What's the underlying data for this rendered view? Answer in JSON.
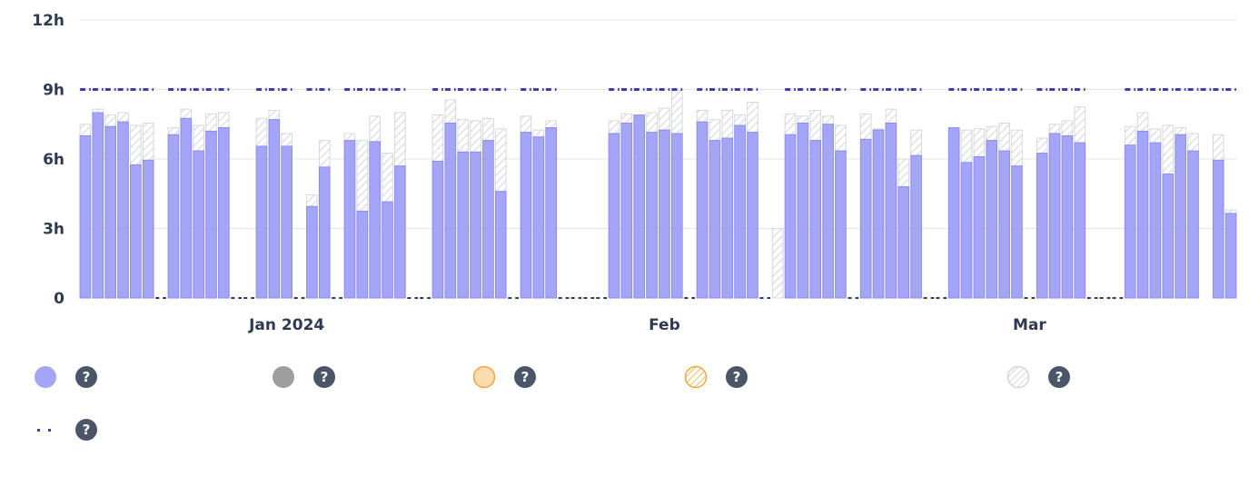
{
  "chart_data": {
    "type": "bar",
    "y_ticks": [
      "0",
      "3h",
      "6h",
      "9h",
      "12h"
    ],
    "ylim": [
      0,
      12
    ],
    "target_hours": 9,
    "x_labels": [
      {
        "label": "Jan 2024",
        "day": 16
      },
      {
        "label": "Feb",
        "day": 46
      },
      {
        "label": "Mar",
        "day": 75
      }
    ],
    "days": [
      {
        "day": 0,
        "base": 7.0,
        "total": 7.5,
        "target": true
      },
      {
        "day": 1,
        "base": 8.0,
        "total": 8.15,
        "target": true
      },
      {
        "day": 2,
        "base": 7.4,
        "total": 7.9,
        "target": true
      },
      {
        "day": 3,
        "base": 7.6,
        "total": 8.0,
        "target": true
      },
      {
        "day": 4,
        "base": 5.75,
        "total": 7.45,
        "target": true
      },
      {
        "day": 5,
        "base": 5.95,
        "total": 7.55,
        "target": true
      },
      {
        "day": 6,
        "base": 0,
        "total": 0,
        "target": false
      },
      {
        "day": 7,
        "base": 7.05,
        "total": 7.35,
        "target": true
      },
      {
        "day": 8,
        "base": 7.75,
        "total": 8.15,
        "target": true
      },
      {
        "day": 9,
        "base": 6.35,
        "total": 7.45,
        "target": true
      },
      {
        "day": 10,
        "base": 7.2,
        "total": 7.95,
        "target": true
      },
      {
        "day": 11,
        "base": 7.35,
        "total": 8.0,
        "target": true
      },
      {
        "day": 12,
        "base": 0,
        "total": 0,
        "target": false
      },
      {
        "day": 13,
        "base": 0,
        "total": 0,
        "target": false
      },
      {
        "day": 14,
        "base": 6.55,
        "total": 7.75,
        "target": true
      },
      {
        "day": 15,
        "base": 7.7,
        "total": 8.1,
        "target": true
      },
      {
        "day": 16,
        "base": 6.55,
        "total": 7.1,
        "target": true
      },
      {
        "day": 17,
        "base": 0,
        "total": 0,
        "target": false
      },
      {
        "day": 18,
        "base": 3.95,
        "total": 4.45,
        "target": true
      },
      {
        "day": 19,
        "base": 5.65,
        "total": 6.8,
        "target": true
      },
      {
        "day": 20,
        "base": 0,
        "total": 0,
        "target": false
      },
      {
        "day": 21,
        "base": 6.8,
        "total": 7.1,
        "target": true
      },
      {
        "day": 22,
        "base": 3.75,
        "total": 6.8,
        "target": true
      },
      {
        "day": 23,
        "base": 6.75,
        "total": 7.85,
        "target": true
      },
      {
        "day": 24,
        "base": 4.15,
        "total": 6.25,
        "target": true
      },
      {
        "day": 25,
        "base": 5.7,
        "total": 8.0,
        "target": true
      },
      {
        "day": 26,
        "base": 0,
        "total": 0,
        "target": false
      },
      {
        "day": 27,
        "base": 0,
        "total": 0,
        "target": false
      },
      {
        "day": 28,
        "base": 5.9,
        "total": 7.9,
        "target": true
      },
      {
        "day": 29,
        "base": 7.55,
        "total": 8.55,
        "target": true
      },
      {
        "day": 30,
        "base": 6.3,
        "total": 7.7,
        "target": true
      },
      {
        "day": 31,
        "base": 6.3,
        "total": 7.65,
        "target": true
      },
      {
        "day": 32,
        "base": 6.8,
        "total": 7.75,
        "target": true
      },
      {
        "day": 33,
        "base": 4.6,
        "total": 7.3,
        "target": true
      },
      {
        "day": 34,
        "base": 0,
        "total": 0,
        "target": false
      },
      {
        "day": 35,
        "base": 7.15,
        "total": 7.85,
        "target": true
      },
      {
        "day": 36,
        "base": 6.95,
        "total": 7.25,
        "target": true
      },
      {
        "day": 37,
        "base": 7.35,
        "total": 7.65,
        "target": true
      },
      {
        "day": 38,
        "base": 0,
        "total": 0,
        "target": false
      },
      {
        "day": 39,
        "base": 0,
        "total": 0,
        "target": false
      },
      {
        "day": 40,
        "base": 0,
        "total": 0,
        "target": false
      },
      {
        "day": 41,
        "base": 0,
        "total": 0,
        "target": false
      },
      {
        "day": 42,
        "base": 7.1,
        "total": 7.65,
        "target": true
      },
      {
        "day": 43,
        "base": 7.55,
        "total": 7.95,
        "target": true
      },
      {
        "day": 44,
        "base": 7.9,
        "total": 7.9,
        "target": true
      },
      {
        "day": 45,
        "base": 7.15,
        "total": 8.0,
        "target": true
      },
      {
        "day": 46,
        "base": 7.25,
        "total": 8.2,
        "target": true
      },
      {
        "day": 47,
        "base": 7.1,
        "total": 8.95,
        "target": true
      },
      {
        "day": 48,
        "base": 0,
        "total": 0,
        "target": false
      },
      {
        "day": 49,
        "base": 7.6,
        "total": 8.1,
        "target": true
      },
      {
        "day": 50,
        "base": 6.8,
        "total": 7.7,
        "target": true
      },
      {
        "day": 51,
        "base": 6.9,
        "total": 8.1,
        "target": true
      },
      {
        "day": 52,
        "base": 7.45,
        "total": 7.9,
        "target": true
      },
      {
        "day": 53,
        "base": 7.15,
        "total": 8.45,
        "target": true
      },
      {
        "day": 54,
        "base": 0,
        "total": 0,
        "target": false
      },
      {
        "day": 55,
        "base": 0,
        "total": 3.0,
        "target": false
      },
      {
        "day": 56,
        "base": 7.05,
        "total": 7.95,
        "target": true
      },
      {
        "day": 57,
        "base": 7.55,
        "total": 7.85,
        "target": true
      },
      {
        "day": 58,
        "base": 6.8,
        "total": 8.1,
        "target": true
      },
      {
        "day": 59,
        "base": 7.5,
        "total": 7.85,
        "target": true
      },
      {
        "day": 60,
        "base": 6.35,
        "total": 7.45,
        "target": true
      },
      {
        "day": 61,
        "base": 0,
        "total": 0,
        "target": false
      },
      {
        "day": 62,
        "base": 6.85,
        "total": 7.95,
        "target": true
      },
      {
        "day": 63,
        "base": 7.25,
        "total": 7.3,
        "target": true
      },
      {
        "day": 64,
        "base": 7.55,
        "total": 8.15,
        "target": true
      },
      {
        "day": 65,
        "base": 4.8,
        "total": 6.0,
        "target": true
      },
      {
        "day": 66,
        "base": 6.15,
        "total": 7.25,
        "target": true
      },
      {
        "day": 67,
        "base": 0,
        "total": 0,
        "target": false
      },
      {
        "day": 68,
        "base": 0,
        "total": 0,
        "target": false
      },
      {
        "day": 69,
        "base": 7.35,
        "total": 7.35,
        "target": true
      },
      {
        "day": 70,
        "base": 5.85,
        "total": 7.25,
        "target": true
      },
      {
        "day": 71,
        "base": 6.1,
        "total": 7.3,
        "target": true
      },
      {
        "day": 72,
        "base": 6.8,
        "total": 7.4,
        "target": true
      },
      {
        "day": 73,
        "base": 6.35,
        "total": 7.55,
        "target": true
      },
      {
        "day": 74,
        "base": 5.7,
        "total": 7.25,
        "target": true
      },
      {
        "day": 75,
        "base": 0,
        "total": 0,
        "target": false
      },
      {
        "day": 76,
        "base": 6.25,
        "total": 6.9,
        "target": true
      },
      {
        "day": 77,
        "base": 7.1,
        "total": 7.5,
        "target": true
      },
      {
        "day": 78,
        "base": 7.0,
        "total": 7.65,
        "target": true
      },
      {
        "day": 79,
        "base": 6.7,
        "total": 8.25,
        "target": true
      },
      {
        "day": 80,
        "base": 0,
        "total": 0,
        "target": false
      },
      {
        "day": 81,
        "base": 0,
        "total": 0,
        "target": false
      },
      {
        "day": 82,
        "base": 0,
        "total": 0,
        "target": false
      },
      {
        "day": 83,
        "base": 6.6,
        "total": 7.4,
        "target": true
      },
      {
        "day": 84,
        "base": 7.2,
        "total": 8.0,
        "target": true
      },
      {
        "day": 85,
        "base": 6.7,
        "total": 7.3,
        "target": true
      },
      {
        "day": 86,
        "base": 5.35,
        "total": 7.45,
        "target": true
      },
      {
        "day": 87,
        "base": 7.05,
        "total": 7.35,
        "target": true
      },
      {
        "day": 88,
        "base": 6.35,
        "total": 7.1,
        "target": true
      },
      {
        "day": 89,
        "base": 0,
        "total": 0,
        "target": true
      },
      {
        "day": 90,
        "base": 5.95,
        "total": 7.05,
        "target": true
      },
      {
        "day": 91,
        "base": 3.65,
        "total": 3.8,
        "target": true
      }
    ]
  },
  "legend": {
    "items": [
      {
        "swatch": "solid-purple",
        "help": "?"
      },
      {
        "swatch": "solid-gray",
        "help": "?"
      },
      {
        "swatch": "solid-orange",
        "help": "?"
      },
      {
        "swatch": "hatched-orange",
        "help": "?"
      },
      {
        "swatch": "hatched-gray",
        "help": "?"
      },
      {
        "swatch": "dotted-purple",
        "help": "?"
      }
    ]
  },
  "colors": {
    "base": "#a5a5f8",
    "base_stroke": "#8b8bf0",
    "target": "#3f3dab",
    "grid": "#e2e4ea",
    "gray": "#9e9e9e",
    "orange_fill": "#fcdcae",
    "orange_stroke": "#f0a73c",
    "hatch": "#d6d8dc"
  }
}
